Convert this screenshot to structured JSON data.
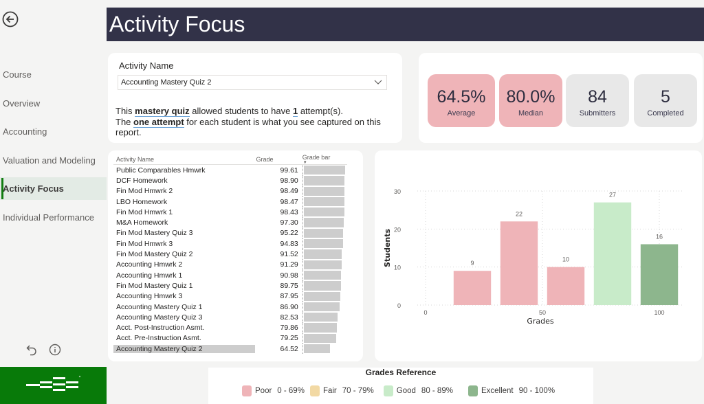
{
  "page": {
    "title": "Activity Focus"
  },
  "sidebar": {
    "items": [
      {
        "label": "Course",
        "active": false
      },
      {
        "label": "Overview",
        "active": false
      },
      {
        "label": "Accounting",
        "active": false
      },
      {
        "label": "Valuation and Modeling",
        "active": false
      },
      {
        "label": "Activity Focus",
        "active": true
      },
      {
        "label": "Individual Performance",
        "active": false
      }
    ]
  },
  "activity": {
    "label": "Activity Name",
    "selected": "Accounting Mastery Quiz 2",
    "desc": {
      "l1a": "This ",
      "l1b": "mastery quiz",
      "l1c": " allowed students to have ",
      "l1d": "1",
      "l1e": " attempt(s).",
      "l2a": "The ",
      "l2b": "one attempt",
      "l2c": " for each student is what you see captured on this report."
    }
  },
  "kpis": [
    {
      "value": "64.5%",
      "label": "Average",
      "color": "#efb4b8"
    },
    {
      "value": "80.0%",
      "label": "Median",
      "color": "#efb4b8"
    },
    {
      "value": "84",
      "label": "Submitters",
      "color": "#e8e8e8"
    },
    {
      "value": "5",
      "label": "Completed",
      "color": "#e8e8e8"
    }
  ],
  "table": {
    "headers": {
      "name": "Activity Name",
      "grade": "Grade",
      "bar": "Grade bar"
    },
    "rows": [
      {
        "name": "Public Comparables Hmwrk",
        "grade": "99.61"
      },
      {
        "name": "DCF Homework",
        "grade": "98.90"
      },
      {
        "name": "Fin Mod Hmwrk 2",
        "grade": "98.49"
      },
      {
        "name": "LBO Homework",
        "grade": "98.47"
      },
      {
        "name": "Fin Mod Hmwrk 1",
        "grade": "98.43"
      },
      {
        "name": "M&A Homework",
        "grade": "97.30"
      },
      {
        "name": "Fin Mod Mastery Quiz 3",
        "grade": "95.22"
      },
      {
        "name": "Fin Mod Hmwrk 3",
        "grade": "94.83"
      },
      {
        "name": "Fin Mod Mastery Quiz 2",
        "grade": "91.52"
      },
      {
        "name": "Accounting Hmwrk 2",
        "grade": "91.29"
      },
      {
        "name": "Accounting Hmwrk 1",
        "grade": "90.98"
      },
      {
        "name": "Fin Mod Mastery Quiz 1",
        "grade": "89.75"
      },
      {
        "name": "Accounting Hmwrk 3",
        "grade": "87.95"
      },
      {
        "name": "Accounting Mastery Quiz 1",
        "grade": "86.90"
      },
      {
        "name": "Accounting Mastery Quiz 3",
        "grade": "82.53"
      },
      {
        "name": "Acct. Post-Instruction Asmt.",
        "grade": "79.86"
      },
      {
        "name": "Acct. Pre-Instruction Asmt.",
        "grade": "79.25"
      },
      {
        "name": "Accounting Mastery Quiz 2",
        "grade": "64.52",
        "selected": true
      }
    ]
  },
  "chart_data": {
    "type": "bar",
    "title": "",
    "xlabel": "Grades",
    "ylabel": "Students",
    "x": [
      20,
      40,
      60,
      80,
      100
    ],
    "values": [
      9,
      22,
      10,
      27,
      16
    ],
    "colors": [
      "#efb4b8",
      "#efb4b8",
      "#efb4b8",
      "#c8ebc9",
      "#8db68d"
    ],
    "xlim": [
      0,
      110
    ],
    "ylim": [
      0,
      30
    ],
    "xticks": [
      0,
      50,
      100
    ],
    "yticks": [
      0,
      10,
      20,
      30
    ],
    "grid": true,
    "data_labels": true
  },
  "legend": {
    "title": "Grades Reference",
    "items": [
      {
        "name": "Poor",
        "range": "0  - 69%",
        "color": "#efb4b8"
      },
      {
        "name": "Fair",
        "range": "70 - 79%",
        "color": "#f2d9a4"
      },
      {
        "name": "Good",
        "range": "80 - 89%",
        "color": "#c8ebc9"
      },
      {
        "name": "Excellent",
        "range": "90 - 100%",
        "color": "#8db68d"
      }
    ]
  }
}
